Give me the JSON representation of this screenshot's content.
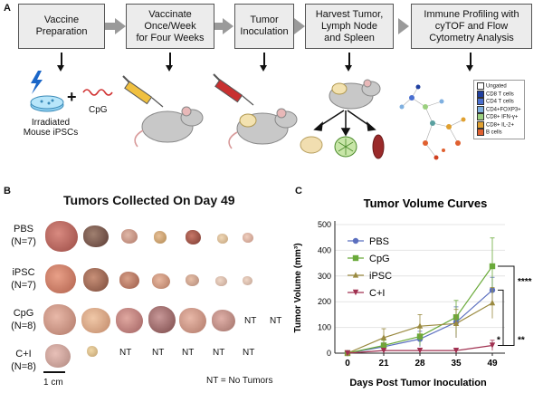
{
  "panel_a": {
    "letter": "A",
    "steps": [
      "Vaccine\nPreparation",
      "Vaccinate\nOnce/Week\nfor Four Weeks",
      "Tumor\nInoculation",
      "Harvest Tumor,\nLymph Node\nand Spleen",
      "Immune Profiling with\ncyTOF and Flow\nCytometry Analysis"
    ],
    "ipsc_label": "Irradiated\nMouse iPSCs",
    "plus": "+",
    "cpg_label": "CpG",
    "legend": [
      {
        "label": "Ungated",
        "color": "#ffffff"
      },
      {
        "label": "CD8 T cells",
        "color": "#1f3fa0"
      },
      {
        "label": "CD4 T cells",
        "color": "#4a6fd0"
      },
      {
        "label": "CD4+FOXP3+",
        "color": "#7fb0e0"
      },
      {
        "label": "CD8+ IFN-γ+",
        "color": "#9bd07f"
      },
      {
        "label": "CD8+ IL-2+",
        "color": "#e0a030"
      },
      {
        "label": "B cells",
        "color": "#e06030"
      }
    ]
  },
  "panel_b": {
    "letter": "B",
    "title": "Tumors Collected On Day 49",
    "rows": [
      {
        "name": "PBS",
        "n": "(N=7)"
      },
      {
        "name": "iPSC",
        "n": "(N=7)"
      },
      {
        "name": "CpG",
        "n": "(N=8)"
      },
      {
        "name": "C+I",
        "n": "(N=8)"
      }
    ],
    "nt_label": "NT",
    "footnote": "NT = No Tumors",
    "scale_bar": "1 cm"
  },
  "panel_c": {
    "letter": "C",
    "significance": [
      "****",
      "*",
      "**"
    ]
  },
  "chart_data": {
    "type": "line",
    "title": "Tumor Volume Curves",
    "xlabel": "Days Post Tumor Inoculation",
    "ylabel": "Tumor Volume (mm³)",
    "x": [
      0,
      21,
      28,
      35,
      49
    ],
    "ylim": [
      0,
      500
    ],
    "yticks": [
      0,
      100,
      200,
      300,
      400,
      500
    ],
    "legend_position": "top-left",
    "series": [
      {
        "name": "PBS",
        "color": "#5b6fbf",
        "marker": "circle",
        "values": [
          0,
          25,
          55,
          120,
          245
        ],
        "err": [
          0,
          15,
          30,
          60,
          50
        ]
      },
      {
        "name": "CpG",
        "color": "#6aaa3a",
        "marker": "square",
        "values": [
          0,
          30,
          65,
          140,
          338
        ],
        "err": [
          0,
          20,
          35,
          65,
          110
        ]
      },
      {
        "name": "iPSC",
        "color": "#9a8a40",
        "marker": "triangle",
        "values": [
          0,
          60,
          105,
          115,
          195
        ],
        "err": [
          0,
          35,
          45,
          55,
          60
        ]
      },
      {
        "name": "C+I",
        "color": "#a03050",
        "marker": "triangle-down",
        "values": [
          0,
          10,
          10,
          10,
          30
        ],
        "err": [
          0,
          5,
          8,
          8,
          20
        ]
      }
    ]
  }
}
